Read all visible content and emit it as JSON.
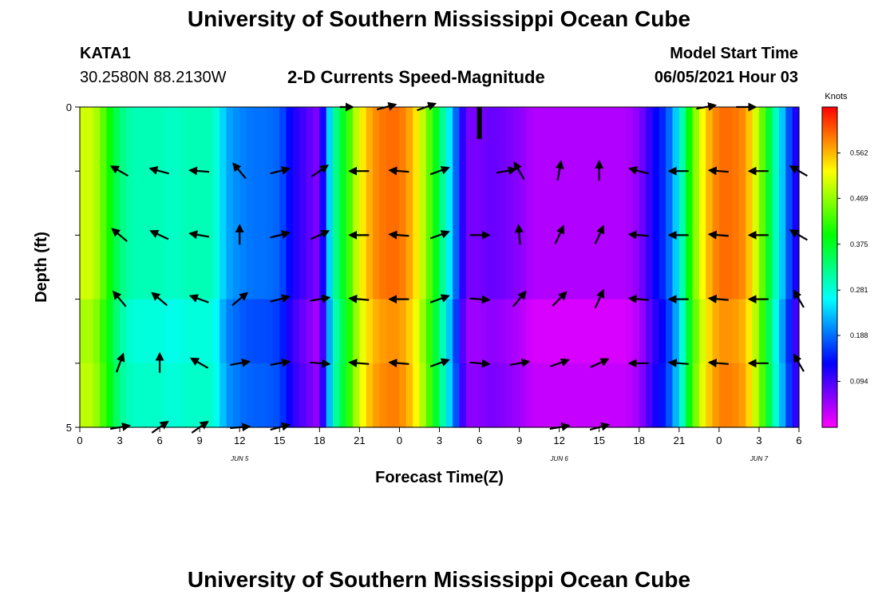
{
  "header": {
    "title": "University of Southern Mississippi Ocean Cube",
    "station_id": "KATA1",
    "coordinates": "30.2580N  88.2130W",
    "plot_title": "2-D Currents Speed-Magnitude",
    "model_start_label": "Model Start Time",
    "model_start_value": "06/05/2021 Hour 03"
  },
  "footer": {
    "title": "University of Southern Mississippi Ocean Cube"
  },
  "colors": {
    "arrow": "#000000",
    "missing_marker": "#000000"
  },
  "chart_data": {
    "type": "heatmap",
    "xlabel": "Forecast Time(Z)",
    "ylabel": "Depth (ft)",
    "x_tick_labels": [
      "0",
      "3",
      "6",
      "9",
      "12",
      "15",
      "18",
      "21",
      "0",
      "3",
      "6",
      "9",
      "12",
      "15",
      "18",
      "21",
      "0",
      "3",
      "6"
    ],
    "x_date_labels": [
      {
        "label": "JUN 5",
        "under_tick": 4
      },
      {
        "label": "JUN 6",
        "under_tick": 12
      },
      {
        "label": "JUN 7",
        "under_tick": 17
      }
    ],
    "y_tick_labels": [
      "0",
      "5"
    ],
    "ylim": [
      0,
      5
    ],
    "xlim_hours": [
      0,
      54
    ],
    "depth_rows": 5,
    "colorbar": {
      "unit": "Knots",
      "tick_labels": [
        "0.562",
        "0.469",
        "0.375",
        "0.281",
        "0.188",
        "0.094"
      ],
      "tick_values": [
        0.562,
        0.469,
        0.375,
        0.281,
        0.188,
        0.094
      ],
      "range": [
        0.0,
        0.656
      ],
      "colormap": "rainbow (magenta-blue-cyan-green-yellow-orange-red)"
    },
    "speed_profile_hours": [
      0,
      1,
      2,
      3,
      4,
      5,
      6,
      7,
      8,
      9,
      10,
      11,
      12,
      13,
      14,
      15,
      16,
      17,
      18,
      19,
      20,
      21,
      22,
      23,
      24,
      25,
      26,
      27,
      28,
      29,
      30,
      31,
      32,
      33,
      34,
      35,
      36,
      37,
      38,
      39,
      40,
      41,
      42,
      43,
      44,
      45,
      46,
      47,
      48,
      49,
      50,
      51,
      52,
      53,
      54
    ],
    "speed_profile_knots": [
      0.5,
      0.5,
      0.42,
      0.33,
      0.3,
      0.3,
      0.3,
      0.29,
      0.3,
      0.3,
      0.3,
      0.22,
      0.2,
      0.19,
      0.19,
      0.18,
      0.12,
      0.09,
      0.06,
      0.3,
      0.4,
      0.52,
      0.58,
      0.6,
      0.6,
      0.56,
      0.47,
      0.35,
      0.22,
      0.07,
      0.07,
      0.08,
      0.07,
      0.06,
      0.04,
      0.04,
      0.04,
      0.04,
      0.04,
      0.04,
      0.04,
      0.04,
      0.06,
      0.12,
      0.16,
      0.26,
      0.44,
      0.55,
      0.6,
      0.6,
      0.58,
      0.48,
      0.33,
      0.2,
      0.09
    ],
    "depth_row_offsets": [
      0.0,
      0.0,
      0.0,
      -0.02,
      -0.01
    ],
    "missing_cell": {
      "hour": 30,
      "depth_row": 0
    },
    "vectors": [
      {
        "hour": 20,
        "row": 0,
        "dir_deg": 90,
        "len": 0.4
      },
      {
        "hour": 23,
        "row": 0,
        "dir_deg": 75,
        "len": 0.6
      },
      {
        "hour": 26,
        "row": 0,
        "dir_deg": 70,
        "len": 0.6
      },
      {
        "hour": 47,
        "row": 0,
        "dir_deg": 80,
        "len": 0.6
      },
      {
        "hour": 50,
        "row": 0,
        "dir_deg": 90,
        "len": 0.6
      },
      {
        "hour": 3,
        "row": 1,
        "dir_deg": 300,
        "len": 0.6
      },
      {
        "hour": 6,
        "row": 1,
        "dir_deg": 285,
        "len": 0.6
      },
      {
        "hour": 9,
        "row": 1,
        "dir_deg": 275,
        "len": 0.6
      },
      {
        "hour": 12,
        "row": 1,
        "dir_deg": 320,
        "len": 0.6
      },
      {
        "hour": 15,
        "row": 1,
        "dir_deg": 75,
        "len": 0.6
      },
      {
        "hour": 18,
        "row": 1,
        "dir_deg": 55,
        "len": 0.6
      },
      {
        "hour": 21,
        "row": 1,
        "dir_deg": 270,
        "len": 0.6
      },
      {
        "hour": 24,
        "row": 1,
        "dir_deg": 275,
        "len": 0.6
      },
      {
        "hour": 27,
        "row": 1,
        "dir_deg": 70,
        "len": 0.6
      },
      {
        "hour": 32,
        "row": 1,
        "dir_deg": 80,
        "len": 0.6
      },
      {
        "hour": 33,
        "row": 1,
        "dir_deg": 330,
        "len": 0.6
      },
      {
        "hour": 36,
        "row": 1,
        "dir_deg": 10,
        "len": 0.6
      },
      {
        "hour": 39,
        "row": 1,
        "dir_deg": 0,
        "len": 0.6
      },
      {
        "hour": 42,
        "row": 1,
        "dir_deg": 285,
        "len": 0.6
      },
      {
        "hour": 45,
        "row": 1,
        "dir_deg": 270,
        "len": 0.6
      },
      {
        "hour": 48,
        "row": 1,
        "dir_deg": 275,
        "len": 0.6
      },
      {
        "hour": 51,
        "row": 1,
        "dir_deg": 270,
        "len": 0.6
      },
      {
        "hour": 54,
        "row": 1,
        "dir_deg": 300,
        "len": 0.6
      },
      {
        "hour": 3,
        "row": 2,
        "dir_deg": 310,
        "len": 0.6
      },
      {
        "hour": 6,
        "row": 2,
        "dir_deg": 295,
        "len": 0.6
      },
      {
        "hour": 9,
        "row": 2,
        "dir_deg": 280,
        "len": 0.6
      },
      {
        "hour": 12,
        "row": 2,
        "dir_deg": 0,
        "len": 0.6
      },
      {
        "hour": 15,
        "row": 2,
        "dir_deg": 75,
        "len": 0.6
      },
      {
        "hour": 18,
        "row": 2,
        "dir_deg": 65,
        "len": 0.6
      },
      {
        "hour": 21,
        "row": 2,
        "dir_deg": 270,
        "len": 0.6
      },
      {
        "hour": 24,
        "row": 2,
        "dir_deg": 275,
        "len": 0.6
      },
      {
        "hour": 27,
        "row": 2,
        "dir_deg": 70,
        "len": 0.6
      },
      {
        "hour": 30,
        "row": 2,
        "dir_deg": 90,
        "len": 0.6
      },
      {
        "hour": 33,
        "row": 2,
        "dir_deg": 355,
        "len": 0.6
      },
      {
        "hour": 36,
        "row": 2,
        "dir_deg": 25,
        "len": 0.6
      },
      {
        "hour": 39,
        "row": 2,
        "dir_deg": 25,
        "len": 0.6
      },
      {
        "hour": 42,
        "row": 2,
        "dir_deg": 275,
        "len": 0.6
      },
      {
        "hour": 45,
        "row": 2,
        "dir_deg": 270,
        "len": 0.6
      },
      {
        "hour": 48,
        "row": 2,
        "dir_deg": 275,
        "len": 0.6
      },
      {
        "hour": 51,
        "row": 2,
        "dir_deg": 270,
        "len": 0.6
      },
      {
        "hour": 54,
        "row": 2,
        "dir_deg": 300,
        "len": 0.6
      },
      {
        "hour": 3,
        "row": 3,
        "dir_deg": 320,
        "len": 0.6
      },
      {
        "hour": 6,
        "row": 3,
        "dir_deg": 310,
        "len": 0.6
      },
      {
        "hour": 9,
        "row": 3,
        "dir_deg": 290,
        "len": 0.6
      },
      {
        "hour": 12,
        "row": 3,
        "dir_deg": 50,
        "len": 0.6
      },
      {
        "hour": 15,
        "row": 3,
        "dir_deg": 75,
        "len": 0.6
      },
      {
        "hour": 18,
        "row": 3,
        "dir_deg": 80,
        "len": 0.6
      },
      {
        "hour": 21,
        "row": 3,
        "dir_deg": 275,
        "len": 0.6
      },
      {
        "hour": 24,
        "row": 3,
        "dir_deg": 270,
        "len": 0.6
      },
      {
        "hour": 27,
        "row": 3,
        "dir_deg": 70,
        "len": 0.6
      },
      {
        "hour": 30,
        "row": 3,
        "dir_deg": 95,
        "len": 0.6
      },
      {
        "hour": 33,
        "row": 3,
        "dir_deg": 40,
        "len": 0.6
      },
      {
        "hour": 36,
        "row": 3,
        "dir_deg": 45,
        "len": 0.6
      },
      {
        "hour": 39,
        "row": 3,
        "dir_deg": 25,
        "len": 0.6
      },
      {
        "hour": 42,
        "row": 3,
        "dir_deg": 275,
        "len": 0.6
      },
      {
        "hour": 45,
        "row": 3,
        "dir_deg": 270,
        "len": 0.6
      },
      {
        "hour": 48,
        "row": 3,
        "dir_deg": 275,
        "len": 0.6
      },
      {
        "hour": 51,
        "row": 3,
        "dir_deg": 270,
        "len": 0.6
      },
      {
        "hour": 54,
        "row": 3,
        "dir_deg": 330,
        "len": 0.6
      },
      {
        "hour": 3,
        "row": 4,
        "dir_deg": 20,
        "len": 0.6
      },
      {
        "hour": 6,
        "row": 4,
        "dir_deg": 0,
        "len": 0.6
      },
      {
        "hour": 9,
        "row": 4,
        "dir_deg": 300,
        "len": 0.6
      },
      {
        "hour": 12,
        "row": 4,
        "dir_deg": 80,
        "len": 0.6
      },
      {
        "hour": 15,
        "row": 4,
        "dir_deg": 80,
        "len": 0.6
      },
      {
        "hour": 18,
        "row": 4,
        "dir_deg": 95,
        "len": 0.6
      },
      {
        "hour": 21,
        "row": 4,
        "dir_deg": 275,
        "len": 0.6
      },
      {
        "hour": 24,
        "row": 4,
        "dir_deg": 275,
        "len": 0.6
      },
      {
        "hour": 27,
        "row": 4,
        "dir_deg": 70,
        "len": 0.6
      },
      {
        "hour": 30,
        "row": 4,
        "dir_deg": 95,
        "len": 0.6
      },
      {
        "hour": 33,
        "row": 4,
        "dir_deg": 80,
        "len": 0.6
      },
      {
        "hour": 36,
        "row": 4,
        "dir_deg": 70,
        "len": 0.6
      },
      {
        "hour": 39,
        "row": 4,
        "dir_deg": 65,
        "len": 0.6
      },
      {
        "hour": 42,
        "row": 4,
        "dir_deg": 270,
        "len": 0.6
      },
      {
        "hour": 45,
        "row": 4,
        "dir_deg": 275,
        "len": 0.6
      },
      {
        "hour": 48,
        "row": 4,
        "dir_deg": 275,
        "len": 0.6
      },
      {
        "hour": 51,
        "row": 4,
        "dir_deg": 270,
        "len": 0.6
      },
      {
        "hour": 54,
        "row": 4,
        "dir_deg": 330,
        "len": 0.6
      },
      {
        "hour": 3,
        "row": 5,
        "dir_deg": 80,
        "len": 0.6
      },
      {
        "hour": 6,
        "row": 5,
        "dir_deg": 55,
        "len": 0.6
      },
      {
        "hour": 9,
        "row": 5,
        "dir_deg": 55,
        "len": 0.6
      },
      {
        "hour": 12,
        "row": 5,
        "dir_deg": 85,
        "len": 0.6
      },
      {
        "hour": 15,
        "row": 5,
        "dir_deg": 75,
        "len": 0.6
      },
      {
        "hour": 36,
        "row": 5,
        "dir_deg": 80,
        "len": 0.6
      },
      {
        "hour": 39,
        "row": 5,
        "dir_deg": 75,
        "len": 0.6
      }
    ]
  }
}
